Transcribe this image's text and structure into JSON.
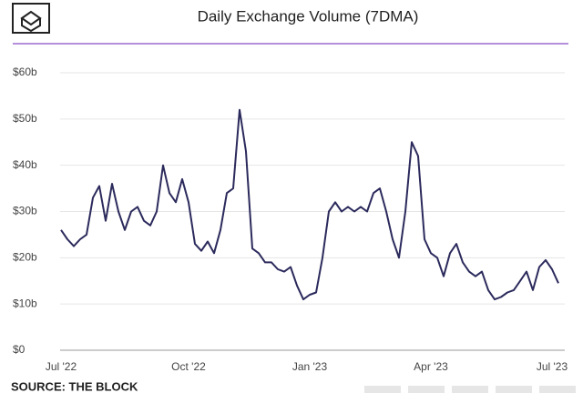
{
  "header": {
    "source": "SOURCE: THE BLOCK"
  },
  "chart_data": {
    "type": "line",
    "title": "Daily Exchange Volume (7DMA)",
    "categories": [
      "Jul '22",
      null,
      null,
      null,
      null,
      null,
      null,
      null,
      null,
      null,
      null,
      null,
      null,
      null,
      null,
      null,
      null,
      null,
      null,
      null,
      "Oct '22",
      null,
      null,
      null,
      null,
      null,
      null,
      null,
      null,
      null,
      null,
      null,
      null,
      null,
      null,
      null,
      null,
      null,
      null,
      "Jan '23",
      null,
      null,
      null,
      null,
      null,
      null,
      null,
      null,
      null,
      null,
      null,
      null,
      null,
      null,
      null,
      null,
      null,
      null,
      "Apr '23",
      null,
      null,
      null,
      null,
      null,
      null,
      null,
      null,
      null,
      null,
      null,
      null,
      null,
      null,
      null,
      null,
      null,
      null,
      "Jul '23",
      null
    ],
    "series": [
      {
        "color": "#2b2a5c",
        "values": [
          26,
          24,
          22.5,
          24,
          25,
          33,
          35.5,
          28,
          36,
          30,
          26,
          30,
          31,
          28,
          27,
          30,
          40,
          34,
          32,
          37,
          32,
          23,
          21.5,
          23.5,
          21,
          26,
          34,
          35,
          52,
          43,
          22,
          21,
          19,
          19,
          17.5,
          17,
          18,
          14,
          11,
          12,
          12.5,
          20,
          30,
          32,
          30,
          31,
          30,
          31,
          30,
          34,
          35,
          30,
          24,
          20,
          30,
          45,
          42,
          24,
          21,
          20,
          16,
          21,
          23,
          19,
          17,
          16,
          17,
          13,
          11,
          11.5,
          12.5,
          13,
          15,
          17,
          13,
          18,
          19.5,
          17.5,
          14.5
        ]
      }
    ],
    "ylim": [
      0,
      60
    ],
    "yticks": [
      {
        "value": 0,
        "label": "$0"
      },
      {
        "value": 10,
        "label": "$10b"
      },
      {
        "value": 20,
        "label": "$20b"
      },
      {
        "value": 30,
        "label": "$30b"
      },
      {
        "value": 40,
        "label": "$40b"
      },
      {
        "value": 50,
        "label": "$50b"
      },
      {
        "value": 60,
        "label": "$60b"
      }
    ],
    "grid": true
  }
}
